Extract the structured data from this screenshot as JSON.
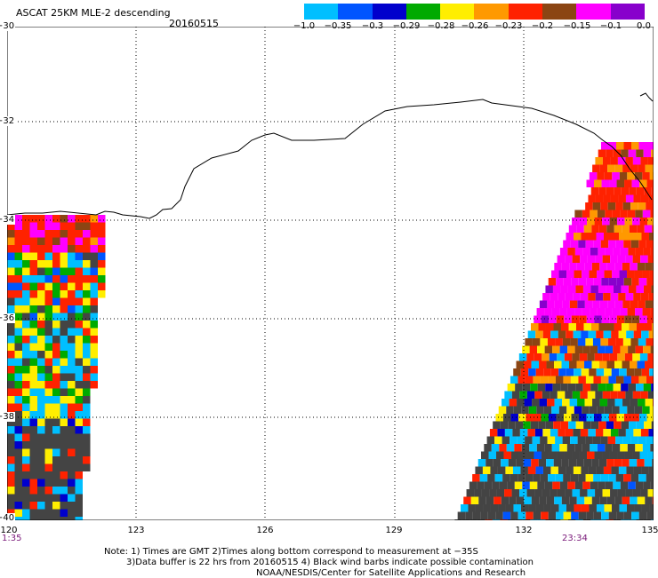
{
  "header": {
    "title": "ASCAT 25KM MLE-2 descending",
    "date": "20160515"
  },
  "colorbar": {
    "labels": [
      "−1.0",
      "−0.35",
      "−0.3",
      "−0.29",
      "−0.28",
      "−0.26",
      "−0.23",
      "−0.2",
      "−0.15",
      "−0.1",
      "0.0"
    ],
    "colors": [
      "#444444",
      "#00bfff",
      "#0055ff",
      "#0000cc",
      "#00aa00",
      "#ffee00",
      "#ff9900",
      "#ff2200",
      "#8b4513",
      "#ff00ff",
      "#8800cc"
    ]
  },
  "map": {
    "lat_labels": [
      "−30",
      "−32",
      "−34",
      "−36",
      "−38",
      "−40"
    ],
    "lon_labels": [
      "120",
      "123",
      "126",
      "129",
      "132",
      "135"
    ],
    "time_labels": [
      "1:35",
      "23:34"
    ]
  },
  "notes": [
    "Note: 1) Times are GMT 2)Times along bottom correspond to measurement at −35S",
    "3)Data buffer is 22 hrs from 20160515 4) Black wind barbs indicate possible contamination",
    "NOAA/NESDIS/Center for Satellite Applications and Research"
  ]
}
